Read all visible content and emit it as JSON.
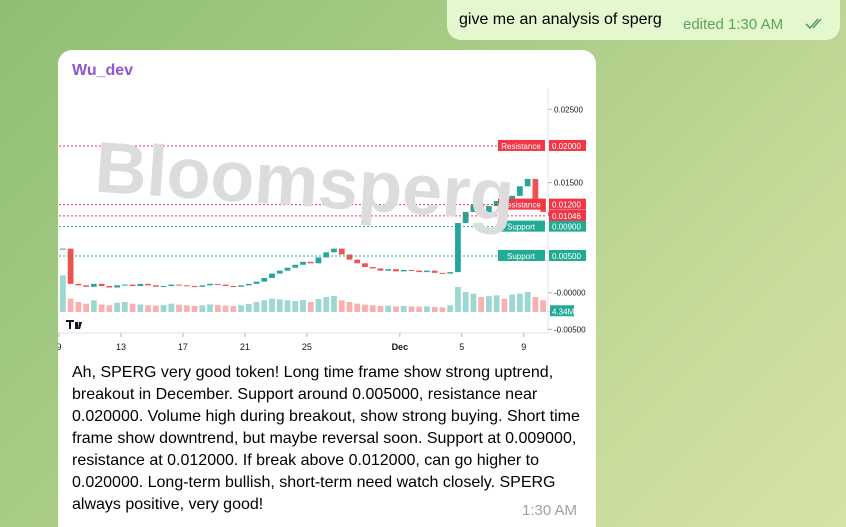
{
  "outgoing": {
    "text": "give me an analysis of sperg",
    "status": "edited 1:30 AM"
  },
  "incoming": {
    "sender": "Wu_dev",
    "text": "Ah, SPERG very good token! Long time frame show strong uptrend, breakout in December. Support around 0.005000, resistance near 0.020000. Volume high during breakout, show strong buying. Short time frame show downtrend, but maybe reversal soon. Support at 0.009000, resistance at 0.012000. If break above 0.012000, can go higher to 0.020000. Long-term bullish, short-term need watch closely. SPERG always positive, very good!",
    "time": "1:30 AM"
  },
  "chart_data": {
    "type": "candlestick",
    "watermark": "Bloomsperg",
    "closes": [
      0.006,
      0.0012,
      0.001,
      0.0008,
      0.0012,
      0.0009,
      0.0007,
      0.001,
      0.0011,
      0.0009,
      0.0012,
      0.001,
      0.0008,
      0.0009,
      0.0011,
      0.001,
      0.0009,
      0.0008,
      0.001,
      0.0012,
      0.0011,
      0.0009,
      0.0008,
      0.001,
      0.0012,
      0.0015,
      0.002,
      0.0026,
      0.003,
      0.0034,
      0.0038,
      0.0042,
      0.004,
      0.0048,
      0.0055,
      0.006,
      0.0052,
      0.0045,
      0.004,
      0.0035,
      0.0033,
      0.003,
      0.0032,
      0.0029,
      0.0031,
      0.003,
      0.0028,
      0.003,
      0.0027,
      0.0026,
      0.0028,
      0.0095,
      0.011,
      0.012,
      0.0105,
      0.0118,
      0.0125,
      0.0115,
      0.0132,
      0.0145,
      0.0155,
      0.0128,
      0.011,
      0.01046
    ],
    "up_color": "#26a69a",
    "down_color": "#ef5350",
    "ylim": [
      -0.0055,
      0.0279
    ],
    "yticks": [
      {
        "value": 0.025,
        "label": "0.02500"
      },
      {
        "value": 0.015,
        "label": "0.01500"
      },
      {
        "value": 0,
        "label": "-0.00000"
      },
      {
        "value": -0.005,
        "label": "-0.00500"
      }
    ],
    "xlim": [
      0,
      63
    ],
    "xticks": [
      {
        "value": 0,
        "label": "9"
      },
      {
        "value": 8,
        "label": "13"
      },
      {
        "value": 16,
        "label": "17"
      },
      {
        "value": 24,
        "label": "21"
      },
      {
        "value": 32,
        "label": "25"
      },
      {
        "value": 44,
        "label": "Dec"
      },
      {
        "value": 52,
        "label": "5"
      },
      {
        "value": 60,
        "label": "9"
      }
    ],
    "levels": [
      {
        "name": "Resistance",
        "value": 0.02,
        "label": "0.02000",
        "color": "#f23645"
      },
      {
        "name": "Resistance",
        "value": 0.012,
        "label": "0.01200",
        "color": "#f23645"
      },
      {
        "name": "Support",
        "value": 0.009,
        "label": "0.00900",
        "color": "#22ab94"
      },
      {
        "name": "Support",
        "value": 0.005,
        "label": "0.00500",
        "color": "#22ab94"
      }
    ],
    "last_price": {
      "value": 0.01046,
      "label": "0.01046",
      "color": "#f23645"
    },
    "volumes": {
      "values": [
        220,
        80,
        60,
        50,
        70,
        45,
        40,
        55,
        60,
        50,
        45,
        40,
        38,
        42,
        50,
        44,
        40,
        36,
        40,
        46,
        42,
        38,
        36,
        40,
        48,
        60,
        70,
        80,
        76,
        70,
        66,
        72,
        60,
        78,
        90,
        96,
        70,
        60,
        50,
        44,
        40,
        36,
        38,
        34,
        36,
        34,
        32,
        34,
        30,
        28,
        40,
        150,
        120,
        110,
        90,
        95,
        100,
        80,
        105,
        110,
        120,
        90,
        70,
        4.34
      ],
      "vlim": [
        0,
        300
      ],
      "last_label": "4.34M",
      "label_color": "#22ab94"
    }
  }
}
